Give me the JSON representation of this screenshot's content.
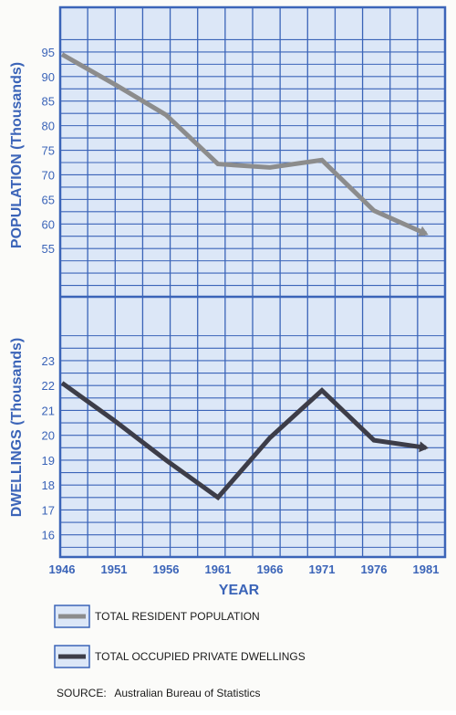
{
  "chart_data": [
    {
      "type": "line",
      "ylabel": "POPULATION (Thousands)",
      "x": [
        1946,
        1951,
        1956,
        1961,
        1966,
        1971,
        1976,
        1981
      ],
      "ylim": [
        45,
        100
      ],
      "yticks": [
        55,
        60,
        65,
        70,
        75,
        80,
        85,
        90,
        95
      ],
      "series": [
        {
          "name": "TOTAL RESIDENT POPULATION",
          "values": [
            94.5,
            88.5,
            82.2,
            72.2,
            71.5,
            73.0,
            62.7,
            58.0
          ],
          "color": "#8c8c8c"
        }
      ]
    },
    {
      "type": "line",
      "ylabel": "DWELLINGS (Thousands)",
      "xlabel": "YEAR",
      "x": [
        1946,
        1951,
        1956,
        1961,
        1966,
        1971,
        1976,
        1981
      ],
      "xticks": [
        "1946",
        "1951",
        "1956",
        "1961",
        "1966",
        "1971",
        "1976",
        "1981"
      ],
      "ylim": [
        15,
        24.5
      ],
      "yticks": [
        16,
        17,
        18,
        19,
        20,
        21,
        22,
        23
      ],
      "series": [
        {
          "name": "TOTAL OCCUPIED PRIVATE DWELLINGS",
          "values": [
            22.1,
            20.6,
            19.0,
            17.5,
            19.9,
            21.8,
            19.8,
            19.5
          ],
          "color": "#3d3d48"
        }
      ]
    }
  ],
  "legend": [
    {
      "label": "TOTAL RESIDENT POPULATION",
      "color": "#8c8c8c"
    },
    {
      "label": "TOTAL OCCUPIED PRIVATE DWELLINGS",
      "color": "#3d3d48"
    }
  ],
  "source": {
    "prefix": "SOURCE:",
    "text": "Australian Bureau of Statistics"
  },
  "colors": {
    "grid": "#3b64b8",
    "background": "#dce7f7",
    "labels": "#3b64b8"
  }
}
